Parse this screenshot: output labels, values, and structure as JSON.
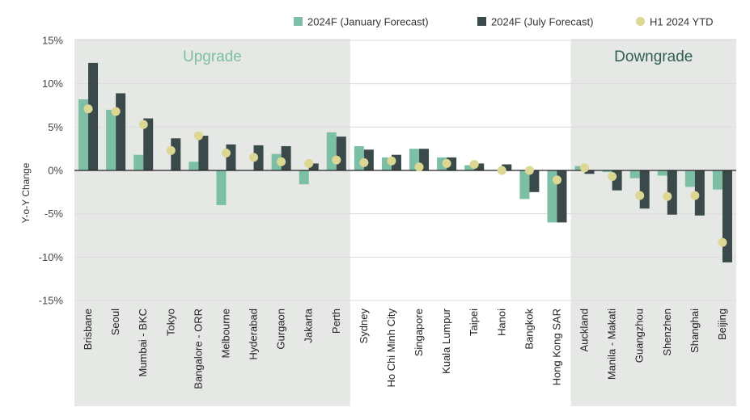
{
  "chart_data": {
    "type": "bar",
    "ylabel": "Y-o-Y Change",
    "ylim": [
      -15,
      15
    ],
    "yticks": [
      15,
      10,
      5,
      0,
      -5,
      -10,
      -15
    ],
    "ytick_labels": [
      "15%",
      "10%",
      "5%",
      "0%",
      "-5%",
      "-10%",
      "-15%"
    ],
    "grid": true,
    "legend_position": "top-right",
    "categories": [
      "Brisbane",
      "Seoul",
      "Mumbai - BKC",
      "Tokyo",
      "Bangalore - ORR",
      "Melbourne",
      "Hyderabad",
      "Gurgaon",
      "Jakarta",
      "Perth",
      "Sydney",
      "Ho Chi Minh City",
      "Singapore",
      "Kuala Lumpur",
      "Taipei",
      "Hanoi",
      "Bangkok",
      "Hong Kong SAR",
      "Auckland",
      "Manila - Makati",
      "Guangzhou",
      "Shenzhen",
      "Shanghai",
      "Beijing"
    ],
    "series": [
      {
        "name": "2024F (January Forecast)",
        "type": "bar",
        "color": "#7dbfa4",
        "values": [
          8.2,
          7.0,
          1.8,
          0.0,
          1.0,
          -4.0,
          0.0,
          1.9,
          -1.6,
          4.4,
          2.8,
          1.5,
          2.5,
          1.5,
          0.6,
          0.0,
          -3.3,
          -6.0,
          0.5,
          -0.2,
          -0.9,
          -0.6,
          -1.9,
          -2.2
        ]
      },
      {
        "name": "2024F (July Forecast)",
        "type": "bar",
        "color": "#3a4a4a",
        "values": [
          12.4,
          8.9,
          6.0,
          3.7,
          4.0,
          3.0,
          2.9,
          2.8,
          0.8,
          3.9,
          2.4,
          1.8,
          2.5,
          1.5,
          0.8,
          0.7,
          -2.5,
          -6.0,
          -0.4,
          -2.3,
          -4.4,
          -5.1,
          -5.2,
          -10.6
        ]
      },
      {
        "name": "H1 2024 YTD",
        "type": "scatter",
        "color": "#ddd794",
        "values": [
          7.1,
          6.8,
          5.3,
          2.3,
          4.0,
          2.0,
          1.5,
          1.0,
          0.8,
          1.2,
          0.9,
          1.1,
          0.4,
          0.8,
          0.7,
          0.0,
          0.0,
          -1.1,
          0.3,
          -0.7,
          -2.9,
          -3.0,
          -2.9,
          -8.3
        ]
      }
    ],
    "annotations": [
      {
        "text": "Upgrade",
        "from_category": "Brisbane",
        "to_category": "Perth",
        "color": "#7dbfa4"
      },
      {
        "text": "Downgrade",
        "from_category": "Auckland",
        "to_category": "Beijing",
        "color": "#2f5e52"
      }
    ]
  }
}
